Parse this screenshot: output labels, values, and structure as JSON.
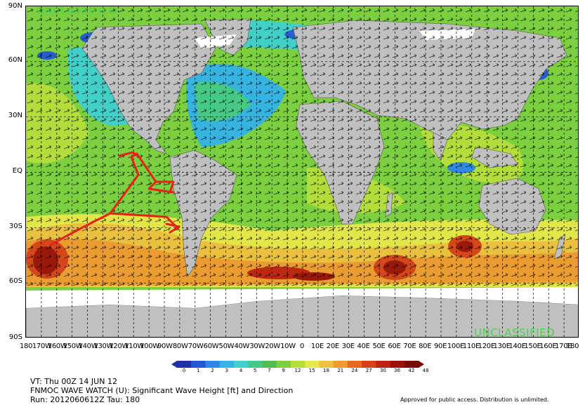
{
  "classification": "UNCLASSIFIED",
  "latitude_labels": [
    "90N",
    "60N",
    "30N",
    "EQ",
    "30S",
    "60S",
    "90S"
  ],
  "longitude_labels": [
    "180",
    "170W",
    "160W",
    "150W",
    "140W",
    "130W",
    "120W",
    "110W",
    "100W",
    "90W",
    "80W",
    "70W",
    "60W",
    "50W",
    "40W",
    "30W",
    "20W",
    "10W",
    "0",
    "10E",
    "20E",
    "30E",
    "40E",
    "50E",
    "60E",
    "70E",
    "80E",
    "90E",
    "100E",
    "110E",
    "120E",
    "130E",
    "140E",
    "150E",
    "160E",
    "170E",
    "180"
  ],
  "colorbar": {
    "ticks": [
      "0",
      "1",
      "2",
      "3",
      "4",
      "5",
      "7",
      "9",
      "12",
      "15",
      "18",
      "21",
      "24",
      "27",
      "30",
      "36",
      "42",
      "48"
    ],
    "colors": [
      "#1f2fa8",
      "#2357d6",
      "#2e86e8",
      "#33b3e8",
      "#3fd0d0",
      "#45c98a",
      "#4fbe4f",
      "#7ccf3f",
      "#b5de3a",
      "#e8e84a",
      "#f0c040",
      "#f09a30",
      "#e86a20",
      "#d84018",
      "#c02010",
      "#9c1008",
      "#7a0804"
    ]
  },
  "colors": {
    "land": "#c0c0c0",
    "ice": "#ffffff",
    "annotation": "#e8201a",
    "stamp": "#4fd24f"
  },
  "info": {
    "valid_time": "VT: Thu 00Z 14 JUN 12",
    "title": "FNMOC WAVE WATCH (U): Significant Wave Height [ft] and Direction",
    "run": "Run: 2012060612Z Tau: 180"
  },
  "approval": "Approved for public access. Distribution is unlimited."
}
